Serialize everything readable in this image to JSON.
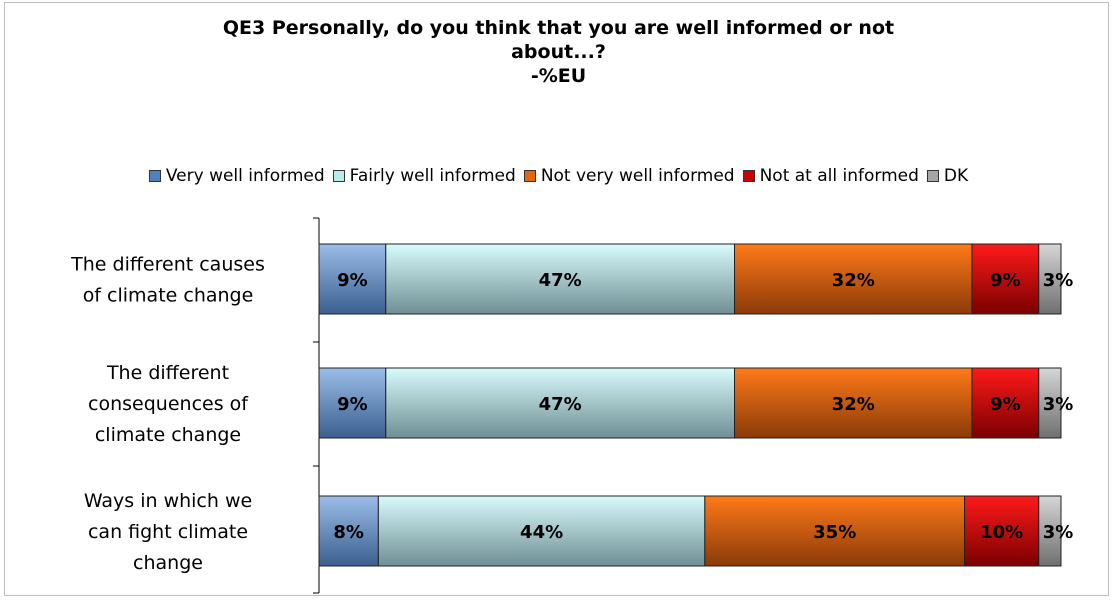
{
  "title_lines": [
    "QE3 Personally, do you think that you are well informed or not",
    "about...?",
    "-%EU"
  ],
  "colors": {
    "very_well": "#4f81bd",
    "fairly_well": "#b6ecec",
    "not_very_well": "#e8650f",
    "not_at_all": "#cc0000",
    "dk": "#a6a6a6"
  },
  "chart_data": {
    "type": "bar",
    "orientation": "horizontal",
    "stacked": true,
    "title": "QE3 Personally, do you think that you are well informed or not about...? -%EU",
    "categories": [
      [
        "The different causes",
        "of climate change"
      ],
      [
        "The different",
        "consequences of",
        "climate change"
      ],
      [
        "Ways in which we",
        "can fight climate",
        "change"
      ]
    ],
    "series": [
      {
        "name": "Very well informed",
        "values": [
          9,
          9,
          8
        ],
        "labels": [
          "9%",
          "9%",
          "8%"
        ]
      },
      {
        "name": "Fairly well informed",
        "values": [
          47,
          47,
          44
        ],
        "labels": [
          "47%",
          "47%",
          "44%"
        ]
      },
      {
        "name": "Not very well informed",
        "values": [
          32,
          32,
          35
        ],
        "labels": [
          "32%",
          "32%",
          "35%"
        ]
      },
      {
        "name": "Not at all informed",
        "values": [
          9,
          9,
          10
        ],
        "labels": [
          "9%",
          "9%",
          "10%"
        ]
      },
      {
        "name": "DK",
        "values": [
          3,
          3,
          3
        ],
        "labels": [
          "3%",
          "3%",
          "3%"
        ]
      }
    ],
    "xlim": [
      0,
      100
    ],
    "grid": false,
    "legend_position": "top"
  }
}
